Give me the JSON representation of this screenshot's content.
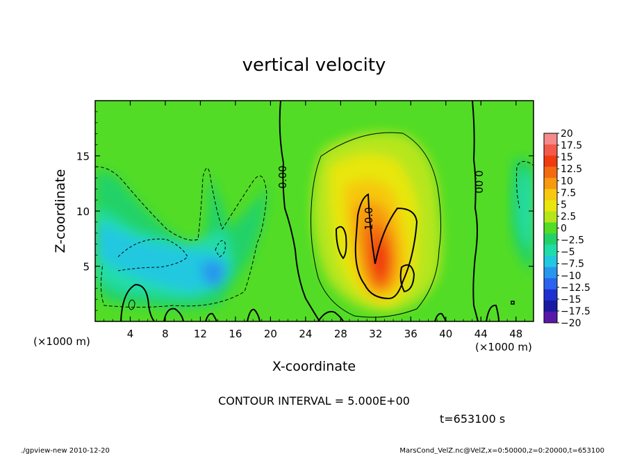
{
  "chart_data": {
    "type": "heatmap",
    "title": "vertical velocity",
    "xlabel": "X-coordinate",
    "ylabel": "Z-coordinate",
    "x_unit": "(×1000 m)",
    "y_unit": "(×1000 m)",
    "xlim": [
      0,
      50
    ],
    "ylim": [
      0,
      20
    ],
    "x_ticks": [
      "4",
      "8",
      "12",
      "16",
      "20",
      "24",
      "28",
      "32",
      "36",
      "40",
      "44",
      "48"
    ],
    "y_ticks": [
      "5",
      "10",
      "15"
    ],
    "colorbar_labels": [
      "20",
      "17.5",
      "15",
      "12.5",
      "10",
      "7.5",
      "5",
      "2.5",
      "0",
      "-2.5",
      "-5",
      "-7.5",
      "-10",
      "-12.5",
      "-15",
      "-17.5",
      "-20"
    ],
    "colorbar_colors": [
      "#f48a8a",
      "#f45a4a",
      "#f03a10",
      "#f36a10",
      "#f69a10",
      "#f6c810",
      "#e8e60c",
      "#b6e61a",
      "#52dc26",
      "#22d268",
      "#20dca8",
      "#20c8e0",
      "#2896ee",
      "#2a64ee",
      "#2030d0",
      "#1a1aa0",
      "#5a18a8"
    ],
    "contour_labels": [
      "0.00",
      "10.0",
      "0.00"
    ],
    "contour_interval": "CONTOUR INTERVAL = 5.000E+00",
    "time": "t=653100 s"
  },
  "footer": {
    "left": "./gpview-new 2010-12-20",
    "right": "MarsCond_VelZ.nc@VelZ,x=0:50000,z=0:20000,t=653100"
  }
}
